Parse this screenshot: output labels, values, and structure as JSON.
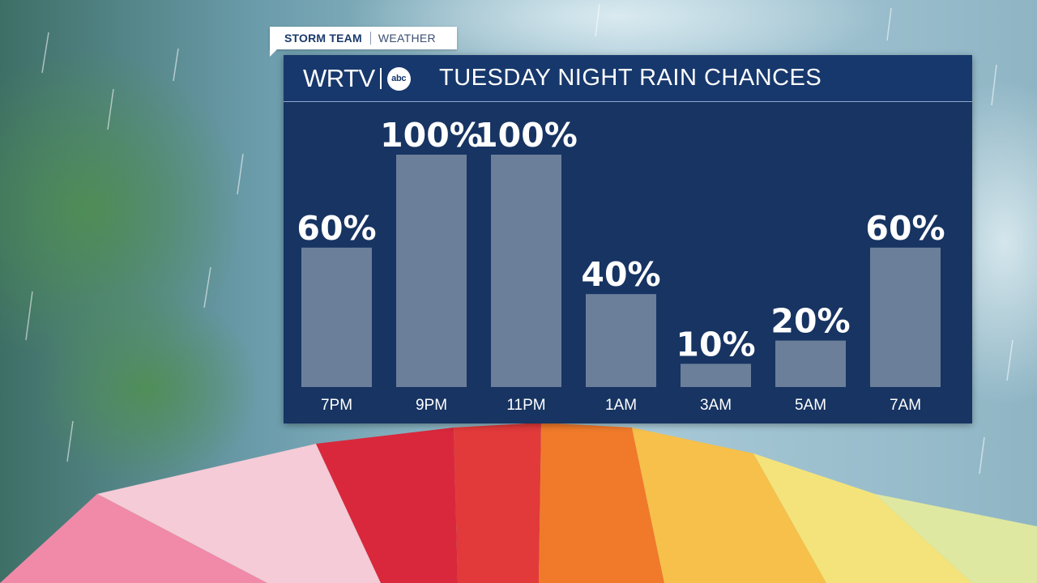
{
  "tag": {
    "brand": "STORM TEAM",
    "section": "WEATHER"
  },
  "header": {
    "logo_text": "WRTV",
    "logo_network": "abc",
    "title": "TUESDAY NIGHT RAIN CHANCES"
  },
  "colors": {
    "panel": "#173462",
    "header": "#17386c",
    "bar": "#6c7f9a",
    "text": "#ffffff",
    "accent": "#8fa8cf"
  },
  "chart_data": {
    "type": "bar",
    "title": "TUESDAY NIGHT RAIN CHANCES",
    "categories": [
      "7PM",
      "9PM",
      "11PM",
      "1AM",
      "3AM",
      "5AM",
      "7AM"
    ],
    "values": [
      60,
      100,
      100,
      40,
      10,
      20,
      60
    ],
    "value_labels": [
      "60%",
      "100%",
      "100%",
      "40%",
      "10%",
      "20%",
      "60%"
    ],
    "ylim": [
      0,
      100
    ],
    "xlabel": "",
    "ylabel": "",
    "grid": false,
    "legend": "none"
  }
}
